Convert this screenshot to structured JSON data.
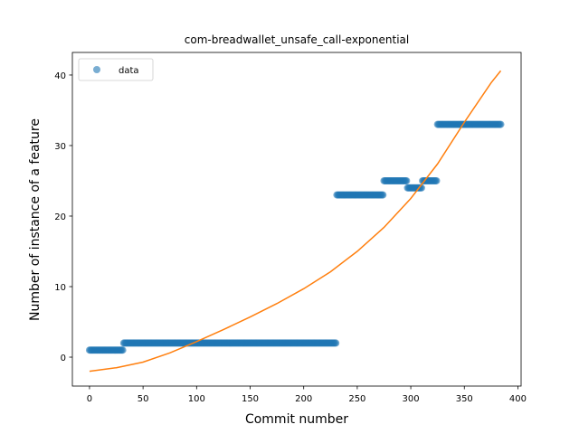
{
  "chart_data": {
    "type": "scatter",
    "title": "com-breadwallet_unsafe_call-exponential",
    "xlabel": "Commit number",
    "ylabel": "Number of instance of a feature",
    "xlim": [
      -16,
      403
    ],
    "ylim": [
      -4.1,
      43.2
    ],
    "xticks": [
      0,
      50,
      100,
      150,
      200,
      250,
      300,
      350,
      400
    ],
    "yticks": [
      0,
      10,
      20,
      30,
      40
    ],
    "grid": false,
    "legend": {
      "position": "top-left",
      "entries": [
        "data"
      ]
    },
    "colors": {
      "data": "#1f77b4",
      "fit": "#ff7f0e"
    },
    "series": [
      {
        "name": "data",
        "kind": "scatter",
        "segments": [
          {
            "x_start": 0,
            "x_end": 31,
            "y": 1
          },
          {
            "x_start": 32,
            "x_end": 230,
            "y": 2
          },
          {
            "x_start": 231,
            "x_end": 274,
            "y": 23
          },
          {
            "x_start": 275,
            "x_end": 296,
            "y": 25
          },
          {
            "x_start": 297,
            "x_end": 310,
            "y": 24
          },
          {
            "x_start": 311,
            "x_end": 324,
            "y": 25
          },
          {
            "x_start": 325,
            "x_end": 384,
            "y": 33
          }
        ]
      },
      {
        "kind": "line",
        "points": [
          [
            0,
            -2.0
          ],
          [
            25,
            -1.5
          ],
          [
            50,
            -0.7
          ],
          [
            75,
            0.6
          ],
          [
            100,
            2.2
          ],
          [
            125,
            3.9
          ],
          [
            150,
            5.7
          ],
          [
            175,
            7.6
          ],
          [
            200,
            9.7
          ],
          [
            225,
            12.1
          ],
          [
            250,
            15.0
          ],
          [
            275,
            18.4
          ],
          [
            300,
            22.5
          ],
          [
            325,
            27.4
          ],
          [
            350,
            33.3
          ],
          [
            375,
            38.9
          ],
          [
            384,
            40.6
          ]
        ]
      }
    ]
  }
}
